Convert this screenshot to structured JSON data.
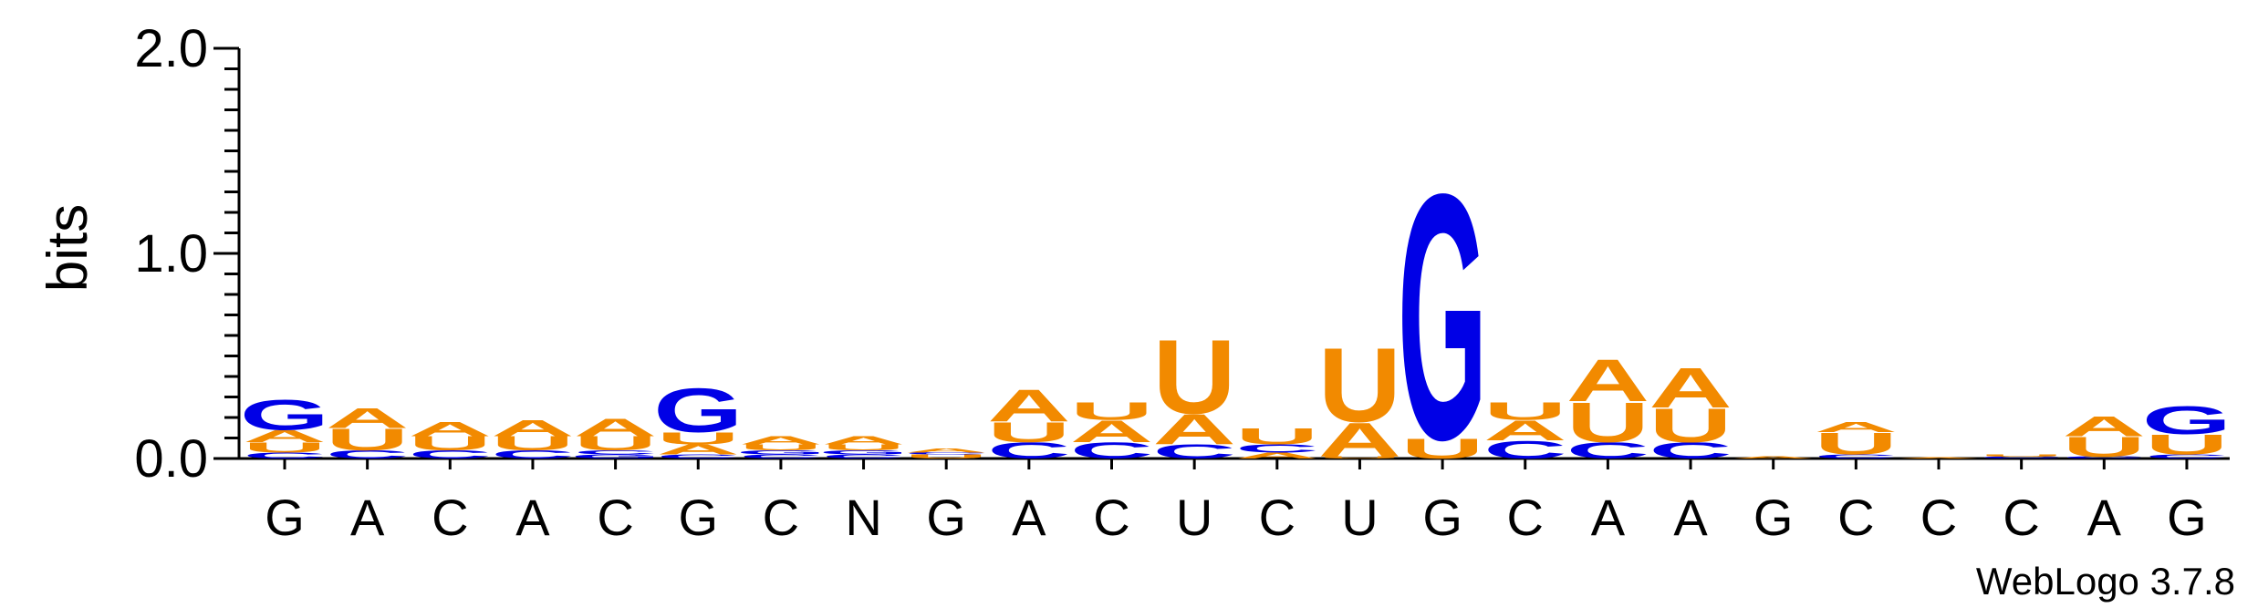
{
  "chart_data": {
    "type": "sequence-logo",
    "ylabel": "bits",
    "ylim": [
      0,
      2.0
    ],
    "yticks": [
      "0.0",
      "1.0",
      "2.0"
    ],
    "x_labels": [
      "G",
      "A",
      "C",
      "A",
      "C",
      "G",
      "C",
      "N",
      "G",
      "A",
      "C",
      "U",
      "C",
      "U",
      "G",
      "C",
      "A",
      "A",
      "G",
      "C",
      "C",
      "C",
      "A",
      "G"
    ],
    "colors": {
      "A": "#f28a00",
      "U": "#f28a00",
      "G": "#0000e6",
      "C": "#0000e6"
    },
    "positions": [
      [
        [
          "C",
          0.03
        ],
        [
          "U",
          0.05
        ],
        [
          "A",
          0.06
        ],
        [
          "G",
          0.15
        ]
      ],
      [
        [
          "C",
          0.04
        ],
        [
          "U",
          0.11
        ],
        [
          "A",
          0.1
        ]
      ],
      [
        [
          "C",
          0.04
        ],
        [
          "U",
          0.07
        ],
        [
          "A",
          0.07
        ]
      ],
      [
        [
          "C",
          0.04
        ],
        [
          "U",
          0.07
        ],
        [
          "A",
          0.08
        ]
      ],
      [
        [
          "G",
          0.02
        ],
        [
          "C",
          0.02
        ],
        [
          "U",
          0.07
        ],
        [
          "A",
          0.09
        ]
      ],
      [
        [
          "C",
          0.02
        ],
        [
          "A",
          0.05
        ],
        [
          "U",
          0.06
        ],
        [
          "G",
          0.22
        ]
      ],
      [
        [
          "C",
          0.02
        ],
        [
          "G",
          0.02
        ],
        [
          "U",
          0.03
        ],
        [
          "A",
          0.04
        ]
      ],
      [
        [
          "C",
          0.02
        ],
        [
          "G",
          0.02
        ],
        [
          "U",
          0.03
        ],
        [
          "A",
          0.04
        ]
      ],
      [
        [
          "U",
          0.02
        ],
        [
          "C",
          0.01
        ],
        [
          "A",
          0.02
        ]
      ],
      [
        [
          "C",
          0.08
        ],
        [
          "U",
          0.1
        ],
        [
          "A",
          0.16
        ]
      ],
      [
        [
          "C",
          0.08
        ],
        [
          "A",
          0.11
        ],
        [
          "U",
          0.09
        ]
      ],
      [
        [
          "C",
          0.07
        ],
        [
          "A",
          0.15
        ],
        [
          "U",
          0.37
        ]
      ],
      [
        [
          "A",
          0.03
        ],
        [
          "C",
          0.04
        ],
        [
          "U",
          0.08
        ]
      ],
      [
        [
          "U",
          0.01
        ],
        [
          "A",
          0.17
        ],
        [
          "U2",
          0.0
        ],
        [
          "U",
          0.37
        ]
      ],
      [
        [
          "U",
          0.1
        ],
        [
          "G",
          1.23
        ]
      ],
      [
        [
          "C",
          0.09
        ],
        [
          "A",
          0.1
        ],
        [
          "U",
          0.09
        ]
      ],
      [
        [
          "C",
          0.08
        ],
        [
          "U",
          0.2
        ],
        [
          "A",
          0.21
        ]
      ],
      [
        [
          "C",
          0.08
        ],
        [
          "U",
          0.17
        ],
        [
          "A",
          0.2
        ]
      ],
      [
        [
          "A",
          0.01
        ]
      ],
      [
        [
          "C",
          0.02
        ],
        [
          "U",
          0.11
        ],
        [
          "A",
          0.05
        ]
      ],
      [
        [
          "A",
          0.005
        ]
      ],
      [
        [
          "C",
          0.01
        ],
        [
          "U",
          0.01
        ]
      ],
      [
        [
          "C",
          0.01
        ],
        [
          "U",
          0.1
        ],
        [
          "A",
          0.1
        ]
      ],
      [
        [
          "C",
          0.02
        ],
        [
          "U",
          0.1
        ],
        [
          "G",
          0.14
        ]
      ]
    ]
  },
  "footer": {
    "credit": "WebLogo 3.7.8"
  }
}
